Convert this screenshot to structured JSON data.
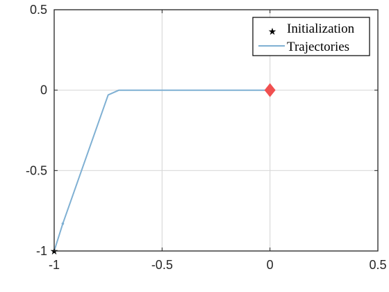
{
  "chart_data": {
    "type": "line",
    "xlim": [
      -1,
      0.5
    ],
    "ylim": [
      -1,
      0.5
    ],
    "x_ticks": [
      -1,
      -0.5,
      0,
      0.5
    ],
    "y_ticks": [
      -1,
      -0.5,
      0,
      0.5
    ],
    "x_tick_labels": [
      "-1",
      "-0.5",
      "0",
      "0.5"
    ],
    "y_tick_labels": [
      "-1",
      "-0.5",
      "0",
      "0.5"
    ],
    "grid": true,
    "legend_position": "top-right",
    "series": [
      {
        "name": "Trajectories",
        "color": "#7FB0D3",
        "x": [
          -1.0,
          -0.96,
          -0.75,
          -0.7,
          0.0
        ],
        "y": [
          -1.0,
          -0.83,
          -0.03,
          0.0,
          0.0
        ]
      }
    ],
    "markers": [
      {
        "name": "Initialization",
        "symbol": "star",
        "color": "#000000",
        "x": -1.0,
        "y": -1.0
      },
      {
        "symbol": "diamond",
        "color": "#F05050",
        "x": 0.0,
        "y": 0.0
      }
    ],
    "legend": [
      "Initialization",
      "Trajectories"
    ]
  }
}
